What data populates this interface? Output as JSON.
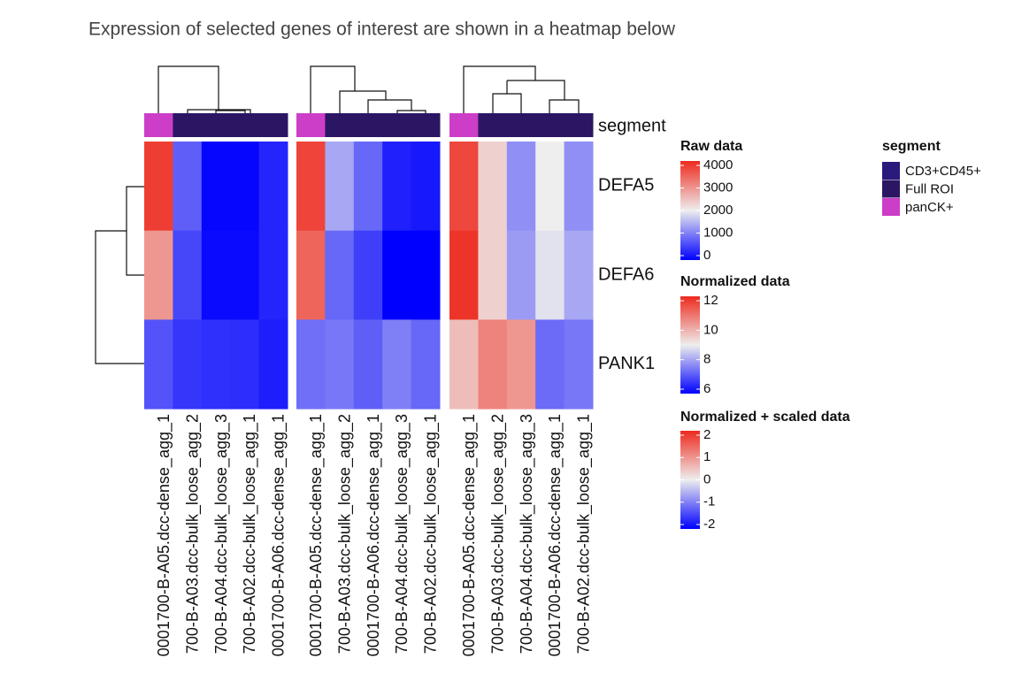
{
  "title": "Expression of selected genes of interest are shown in a heatmap below",
  "chart_data": {
    "type": "heatmap",
    "rows": [
      "DEFA5",
      "DEFA6",
      "PANK1"
    ],
    "annotation": {
      "name": "segment",
      "levels": [
        {
          "name": "CD3+CD45+",
          "color": "#2a1a7c"
        },
        {
          "name": "Full ROI",
          "color": "#2b1663"
        },
        {
          "name": "panCK+",
          "color": "#cc3ec8"
        }
      ]
    },
    "panels": [
      {
        "name": "Raw data",
        "lim": [
          0,
          4000
        ],
        "ticks": [
          0,
          1000,
          2000,
          3000,
          4000
        ],
        "colors": [
          "#0000ff",
          "#eeeeee",
          "#ee2a1e"
        ],
        "columns": [
          "0001700-B-A05.dcc-dense_agg_1",
          "700-B-A03.dcc-bulk_loose_agg_2",
          "700-B-A04.dcc-bulk_loose_agg_3",
          "700-B-A02.dcc-bulk_loose_agg_1",
          "0001700-B-A06.dcc-dense_agg_1"
        ],
        "segments": [
          "panCK+",
          "Full ROI",
          "Full ROI",
          "Full ROI",
          "Full ROI"
        ],
        "values": [
          [
            3800,
            800,
            50,
            50,
            300
          ],
          [
            2900,
            600,
            80,
            80,
            300
          ],
          [
            700,
            450,
            400,
            380,
            250
          ]
        ]
      },
      {
        "name": "Normalized data",
        "lim": [
          6,
          12
        ],
        "ticks": [
          6,
          8,
          10,
          12
        ],
        "colors": [
          "#0000ff",
          "#eeeeee",
          "#ee2a1e"
        ],
        "columns": [
          "0001700-B-A05.dcc-dense_agg_1",
          "700-B-A03.dcc-bulk_loose_agg_2",
          "0001700-B-A06.dcc-dense_agg_1",
          "700-B-A04.dcc-bulk_loose_agg_3",
          "700-B-A02.dcc-bulk_loose_agg_1"
        ],
        "segments": [
          "panCK+",
          "Full ROI",
          "Full ROI",
          "Full ROI",
          "Full ROI"
        ],
        "values": [
          [
            11.6,
            8.1,
            7.3,
            6.4,
            6.3
          ],
          [
            11.1,
            7.3,
            6.8,
            5.9,
            5.9
          ],
          [
            7.4,
            7.5,
            7.2,
            7.6,
            7.3
          ]
        ]
      },
      {
        "name": "Normalized + scaled data",
        "lim": [
          -2,
          2
        ],
        "ticks": [
          -2,
          -1,
          0,
          1,
          2
        ],
        "colors": [
          "#0000ff",
          "#eeeeee",
          "#ee2a1e"
        ],
        "columns": [
          "0001700-B-A05.dcc-dense_agg_1",
          "700-B-A03.dcc-bulk_loose_agg_2",
          "700-B-A04.dcc-bulk_loose_agg_3",
          "0001700-B-A06.dcc-dense_agg_1",
          "700-B-A02.dcc-bulk_loose_agg_1"
        ],
        "segments": [
          "panCK+",
          "Full ROI",
          "Full ROI",
          "Full ROI",
          "Full ROI"
        ],
        "values": [
          [
            1.7,
            0.3,
            -0.8,
            0.0,
            -0.8
          ],
          [
            1.9,
            0.3,
            -0.7,
            -0.1,
            -0.6
          ],
          [
            0.5,
            1.1,
            0.9,
            -1.1,
            -1.0
          ]
        ]
      }
    ]
  }
}
